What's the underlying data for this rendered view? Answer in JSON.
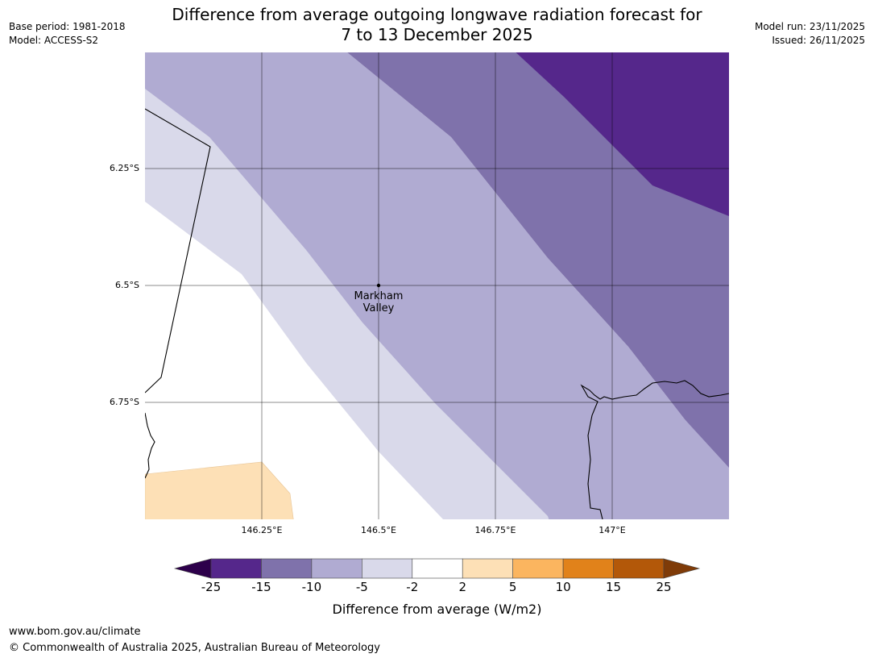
{
  "meta": {
    "base_period": "Base period: 1981-2018",
    "model": "Model: ACCESS-S2",
    "model_run": "Model run: 23/11/2025",
    "issued": "Issued: 26/11/2025"
  },
  "title": {
    "line1": "Difference from average outgoing longwave radiation forecast for",
    "line2": "7 to 13 December 2025"
  },
  "map": {
    "lon_ticks": [
      "146.25°E",
      "146.5°E",
      "146.75°E",
      "147°E"
    ],
    "lat_ticks": [
      "6.25°S",
      "6.5°S",
      "6.75°S"
    ],
    "place": {
      "line1": "Markham",
      "line2": "Valley"
    }
  },
  "colorbar": {
    "bounds": [
      "-25",
      "-15",
      "-10",
      "-5",
      "-2",
      "2",
      "5",
      "10",
      "15",
      "25"
    ],
    "colors": [
      "#55278b",
      "#7f72ab",
      "#b0abd2",
      "#d9d9ea",
      "#ffffff",
      "#fde0b6",
      "#fbb55f",
      "#e1821a",
      "#b35809"
    ],
    "under_color": "#2d004b",
    "over_color": "#7f3b08",
    "label": "Difference from average (W/m2)"
  },
  "footer": {
    "url": "www.bom.gov.au/climate",
    "copyright": "© Commonwealth of Australia 2025, Australian Bureau of Meteorology"
  }
}
